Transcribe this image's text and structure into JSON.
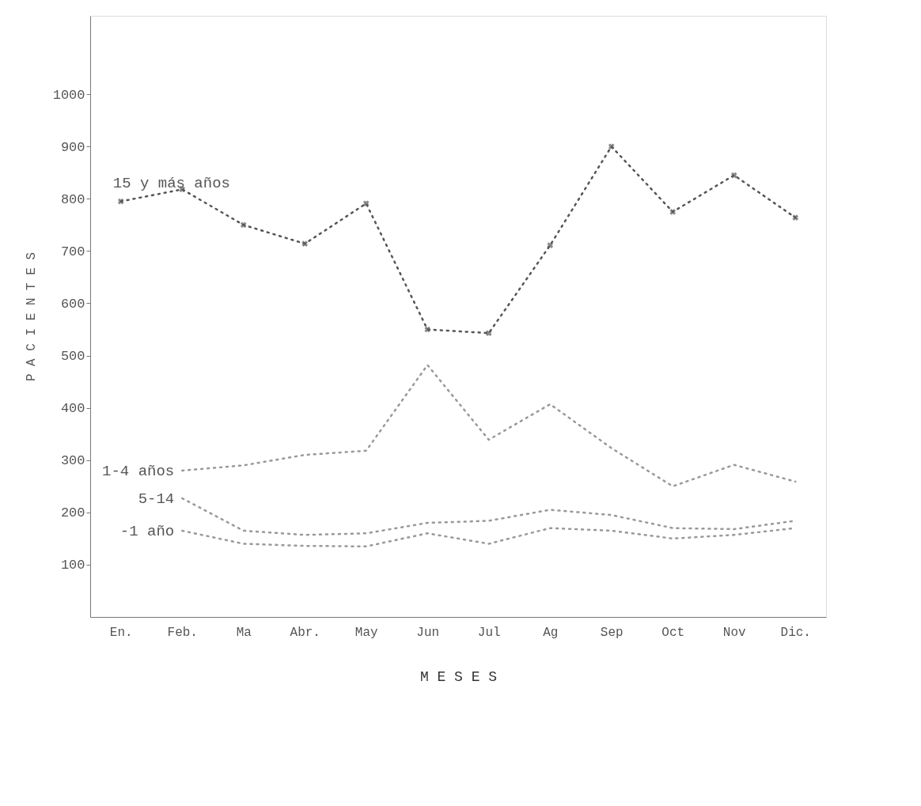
{
  "chart_data": {
    "type": "line",
    "xlabel": "M E S E S",
    "ylabel": "P A C I E N T E S",
    "categories": [
      "En.",
      "Feb.",
      "Ma",
      "Abr.",
      "May",
      "Jun",
      "Jul",
      "Ag",
      "Sep",
      "Oct",
      "Nov",
      "Dic."
    ],
    "ylim": [
      0,
      1150
    ],
    "yticks": [
      100,
      200,
      300,
      400,
      500,
      600,
      700,
      800,
      900,
      1000
    ],
    "grid": false,
    "legend": false,
    "series": [
      {
        "name": "15 y más años",
        "color": "#555555",
        "marker": "cross",
        "line_style": "dotted",
        "values": [
          795,
          818,
          750,
          714,
          791,
          550,
          543,
          711,
          900,
          775,
          845,
          764
        ]
      },
      {
        "name": "1-4 años",
        "color": "#999999",
        "marker": "none",
        "line_style": "dotted",
        "values": [
          null,
          280,
          290,
          310,
          318,
          482,
          339,
          407,
          323,
          250,
          291,
          259
        ]
      },
      {
        "name": "5-14",
        "color": "#999999",
        "marker": "none",
        "line_style": "dotted",
        "values": [
          null,
          227,
          165,
          157,
          160,
          180,
          184,
          205,
          195,
          170,
          168,
          184
        ]
      },
      {
        "name": "-1 año",
        "color": "#999999",
        "marker": "none",
        "line_style": "dotted",
        "values": [
          null,
          165,
          140,
          136,
          135,
          160,
          140,
          170,
          165,
          150,
          157,
          170
        ]
      }
    ]
  }
}
